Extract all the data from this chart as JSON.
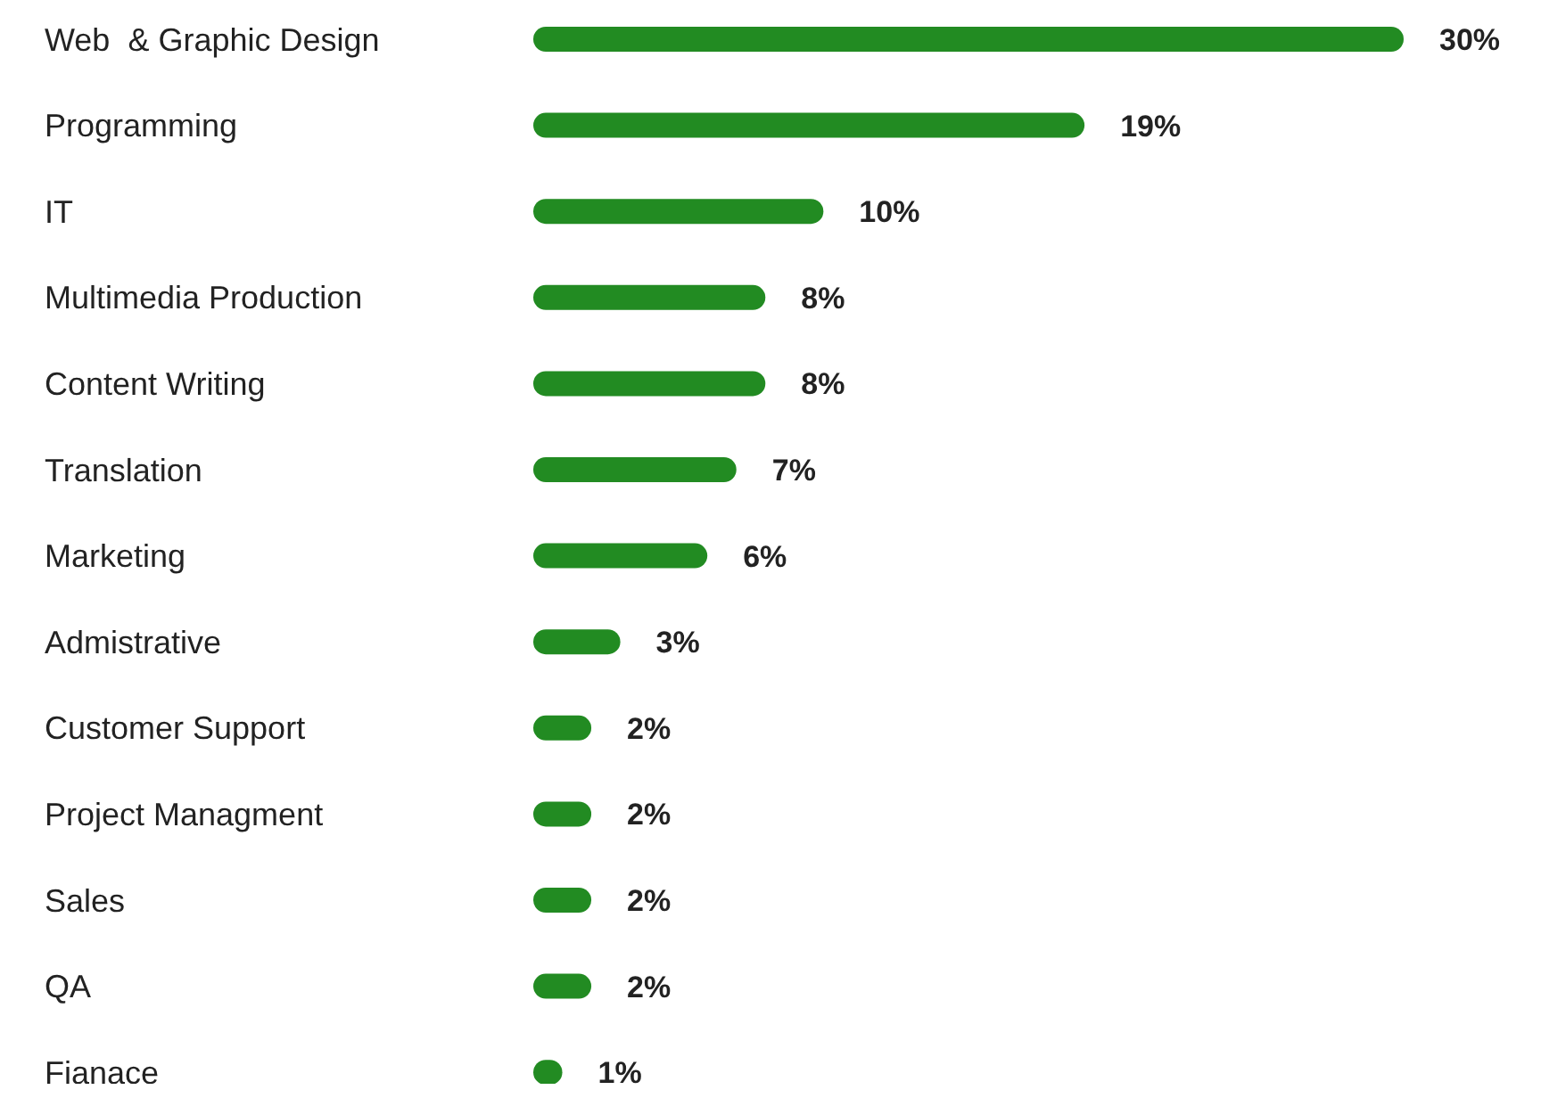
{
  "chart_data": {
    "type": "bar",
    "orientation": "horizontal",
    "categories": [
      "Web  & Graphic Design",
      "Programming",
      "IT",
      "Multimedia Production",
      "Content Writing",
      "Translation",
      "Marketing",
      "Admistrative",
      "Customer Support",
      "Project Managment",
      "Sales",
      "QA",
      "Fianace"
    ],
    "values": [
      30,
      19,
      10,
      8,
      8,
      7,
      6,
      3,
      2,
      2,
      2,
      2,
      1
    ],
    "value_labels": [
      "30%",
      "19%",
      "10%",
      "8%",
      "8%",
      "7%",
      "6%",
      "3%",
      "2%",
      "2%",
      "2%",
      "2%",
      "1%"
    ],
    "color": "#228b22",
    "grid": false
  }
}
